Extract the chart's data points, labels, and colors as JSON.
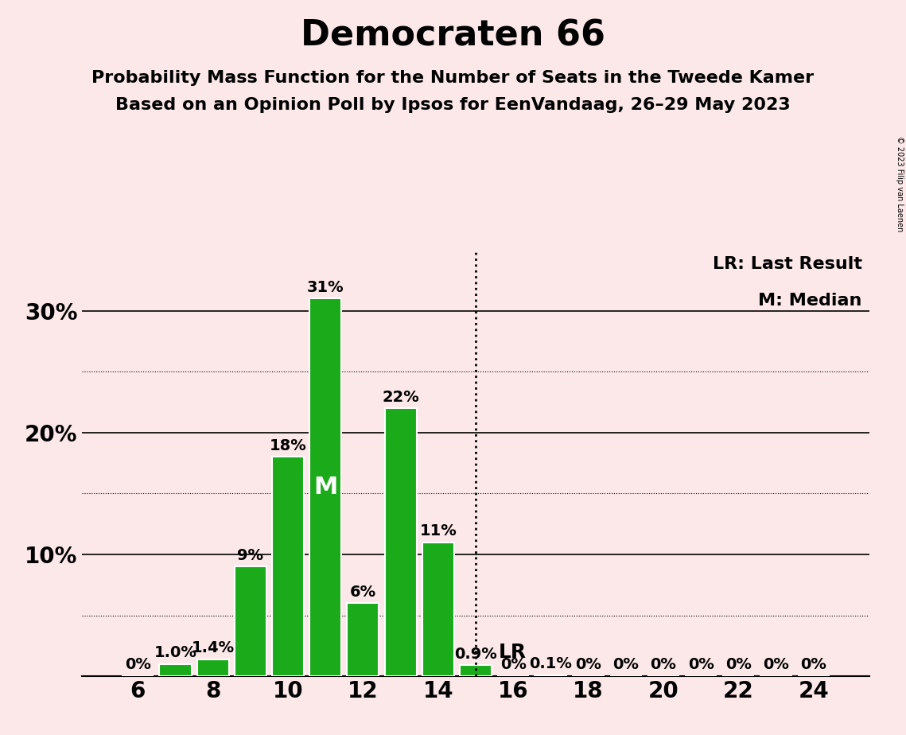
{
  "title": "Democraten 66",
  "subtitle1": "Probability Mass Function for the Number of Seats in the Tweede Kamer",
  "subtitle2": "Based on an Opinion Poll by Ipsos for EenVandaag, 26–29 May 2023",
  "copyright": "© 2023 Filip van Laenen",
  "seats": [
    6,
    7,
    8,
    9,
    10,
    11,
    12,
    13,
    14,
    15,
    16,
    17,
    18,
    19,
    20,
    21,
    22,
    23,
    24
  ],
  "probabilities": [
    0.0,
    1.0,
    1.4,
    9.0,
    18.0,
    31.0,
    6.0,
    22.0,
    11.0,
    0.9,
    0.0,
    0.1,
    0.0,
    0.0,
    0.0,
    0.0,
    0.0,
    0.0,
    0.0
  ],
  "bar_color": "#1aaa1a",
  "bar_edge_color": "#ffffff",
  "background_color": "#fce8e8",
  "median_seat": 11,
  "lr_seat": 15,
  "xlabel_seats": [
    6,
    8,
    10,
    12,
    14,
    16,
    18,
    20,
    22,
    24
  ],
  "ylim": [
    0,
    35
  ],
  "legend_lr": "LR: Last Result",
  "legend_m": "M: Median",
  "lr_label": "LR",
  "m_label": "M",
  "bar_labels": [
    "0%",
    "1.0%",
    "1.4%",
    "9%",
    "18%",
    "31%",
    "6%",
    "22%",
    "11%",
    "0.9%",
    "0%",
    "0.1%",
    "0%",
    "0%",
    "0%",
    "0%",
    "0%",
    "0%",
    "0%"
  ],
  "title_fontsize": 32,
  "subtitle_fontsize": 16,
  "tick_fontsize": 20,
  "label_fontsize": 14,
  "legend_fontsize": 16,
  "m_fontsize": 22
}
